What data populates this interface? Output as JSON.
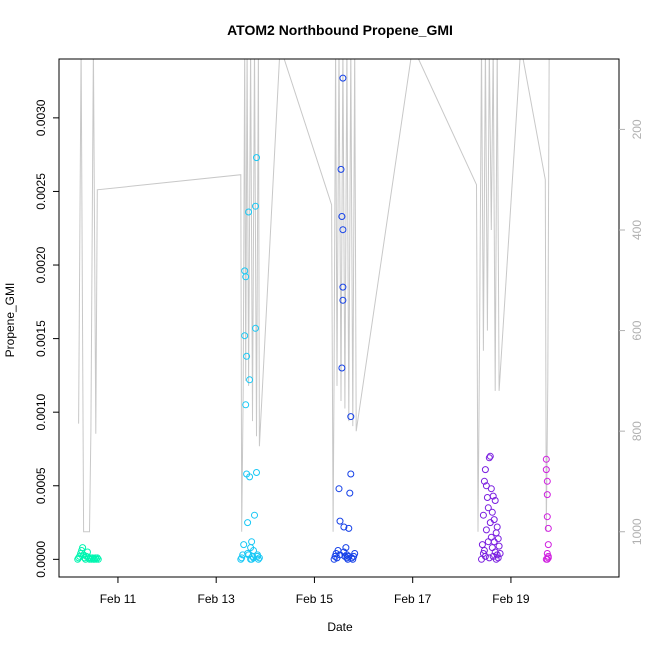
{
  "chart_data": {
    "type": "scatter",
    "title": "ATOM2 Northbound Propene_GMI",
    "xlabel": "Date",
    "ylabel": "Propene_GMI",
    "x_range_days": [
      9.8,
      21.2
    ],
    "x_ticks": [
      {
        "day": 11,
        "label": "Feb 11"
      },
      {
        "day": 13,
        "label": "Feb 13"
      },
      {
        "day": 15,
        "label": "Feb 15"
      },
      {
        "day": 17,
        "label": "Feb 17"
      },
      {
        "day": 19,
        "label": "Feb 19"
      }
    ],
    "ylim": [
      -0.00012,
      0.0034
    ],
    "y_ticks": [
      "0.0000",
      "0.0005",
      "0.0010",
      "0.0015",
      "0.0020",
      "0.0025",
      "0.0030"
    ],
    "y_tick_values": [
      0,
      0.0005,
      0.001,
      0.0015,
      0.002,
      0.0025,
      0.003
    ],
    "secondary_axis": {
      "reversed": true,
      "range": [
        60,
        1090
      ],
      "ticks": [
        "200",
        "400",
        "600",
        "800",
        "1000"
      ],
      "tick_values": [
        200,
        400,
        600,
        800,
        1000
      ],
      "series_color": "#c8c8c8",
      "path": [
        [
          10.2,
          785
        ],
        [
          10.25,
          35
        ],
        [
          10.3,
          1000
        ],
        [
          10.42,
          1000
        ],
        [
          10.45,
          800
        ],
        [
          10.5,
          35
        ],
        [
          10.55,
          805
        ],
        [
          10.58,
          320
        ],
        [
          13.5,
          290
        ],
        [
          13.52,
          1000
        ],
        [
          13.55,
          720
        ],
        [
          13.58,
          35
        ],
        [
          13.6,
          700
        ],
        [
          13.63,
          35
        ],
        [
          13.66,
          710
        ],
        [
          13.7,
          35
        ],
        [
          13.74,
          780
        ],
        [
          13.78,
          35
        ],
        [
          13.82,
          810
        ],
        [
          13.86,
          35
        ],
        [
          13.88,
          830
        ],
        [
          14.3,
          35
        ],
        [
          15.35,
          350
        ],
        [
          15.38,
          1000
        ],
        [
          15.4,
          680
        ],
        [
          15.43,
          35
        ],
        [
          15.46,
          710
        ],
        [
          15.5,
          35
        ],
        [
          15.54,
          740
        ],
        [
          15.58,
          35
        ],
        [
          15.62,
          755
        ],
        [
          15.66,
          35
        ],
        [
          15.7,
          780
        ],
        [
          15.74,
          35
        ],
        [
          15.78,
          790
        ],
        [
          15.82,
          35
        ],
        [
          15.85,
          800
        ],
        [
          17.0,
          35
        ],
        [
          18.3,
          310
        ],
        [
          18.33,
          1000
        ],
        [
          18.36,
          640
        ],
        [
          18.4,
          35
        ],
        [
          18.44,
          640
        ],
        [
          18.48,
          35
        ],
        [
          18.52,
          600
        ],
        [
          18.56,
          35
        ],
        [
          18.6,
          400
        ],
        [
          18.64,
          35
        ],
        [
          18.68,
          720
        ],
        [
          18.72,
          35
        ],
        [
          18.76,
          720
        ],
        [
          19.2,
          35
        ],
        [
          19.7,
          300
        ],
        [
          19.72,
          1000
        ],
        [
          19.75,
          700
        ],
        [
          19.78,
          35
        ]
      ]
    },
    "series": [
      {
        "color": "#00f5b0",
        "points": [
          [
            10.18,
            0.0
          ],
          [
            10.2,
            1e-05
          ],
          [
            10.22,
            2e-05
          ],
          [
            10.24,
            4e-05
          ],
          [
            10.26,
            6e-05
          ],
          [
            10.28,
            8e-05
          ],
          [
            10.3,
            3e-05
          ],
          [
            10.32,
            1e-05
          ],
          [
            10.34,
            0.0
          ],
          [
            10.36,
            2e-05
          ],
          [
            10.38,
            5e-05
          ],
          [
            10.4,
            1e-05
          ],
          [
            10.42,
            0.0
          ],
          [
            10.44,
            1e-05
          ],
          [
            10.46,
            0.0
          ],
          [
            10.48,
            1e-05
          ],
          [
            10.5,
            0.0
          ],
          [
            10.52,
            0.0
          ],
          [
            10.54,
            1e-05
          ],
          [
            10.56,
            0.0
          ],
          [
            10.58,
            1e-05
          ],
          [
            10.6,
            0.0
          ]
        ]
      },
      {
        "color": "#19c8f5",
        "points": [
          [
            13.5,
            0.0
          ],
          [
            13.52,
            1e-05
          ],
          [
            13.54,
            3e-05
          ],
          [
            13.56,
            0.0001
          ],
          [
            13.58,
            0.00152
          ],
          [
            13.58,
            0.00196
          ],
          [
            13.6,
            0.00105
          ],
          [
            13.6,
            0.00192
          ],
          [
            13.62,
            0.00138
          ],
          [
            13.62,
            0.00058
          ],
          [
            13.64,
            0.00025
          ],
          [
            13.64,
            4e-05
          ],
          [
            13.66,
            0.00236
          ],
          [
            13.68,
            0.00122
          ],
          [
            13.68,
            0.00056
          ],
          [
            13.7,
            0.0
          ],
          [
            13.72,
            0.00012
          ],
          [
            13.74,
            2e-05
          ],
          [
            13.76,
            6e-05
          ],
          [
            13.78,
            0.0003
          ],
          [
            13.8,
            0.00157
          ],
          [
            13.8,
            0.0024
          ],
          [
            13.82,
            0.00273
          ],
          [
            13.82,
            0.00059
          ],
          [
            13.84,
            2e-05
          ],
          [
            13.86,
            0.0
          ],
          [
            13.88,
            1e-05
          ],
          [
            13.7,
            8e-05
          ],
          [
            13.66,
            3e-05
          ],
          [
            13.72,
            0.0
          ],
          [
            13.76,
            1e-05
          ],
          [
            13.84,
            3e-05
          ]
        ]
      },
      {
        "color": "#1440e8",
        "points": [
          [
            15.4,
            0.0
          ],
          [
            15.42,
            2e-05
          ],
          [
            15.44,
            4e-05
          ],
          [
            15.46,
            1e-05
          ],
          [
            15.48,
            6e-05
          ],
          [
            15.5,
            0.00048
          ],
          [
            15.52,
            0.00026
          ],
          [
            15.54,
            0.00265
          ],
          [
            15.56,
            0.00233
          ],
          [
            15.56,
            0.0013
          ],
          [
            15.58,
            0.00327
          ],
          [
            15.58,
            0.00224
          ],
          [
            15.58,
            0.00185
          ],
          [
            15.58,
            0.00176
          ],
          [
            15.6,
            0.00022
          ],
          [
            15.62,
            2e-05
          ],
          [
            15.64,
            8e-05
          ],
          [
            15.66,
            3e-05
          ],
          [
            15.68,
            0.0
          ],
          [
            15.7,
            0.00021
          ],
          [
            15.72,
            0.00045
          ],
          [
            15.74,
            0.00097
          ],
          [
            15.74,
            0.00058
          ],
          [
            15.76,
            1e-05
          ],
          [
            15.78,
            0.0
          ],
          [
            15.8,
            2e-05
          ],
          [
            15.82,
            4e-05
          ],
          [
            15.52,
            3e-05
          ],
          [
            15.6,
            5e-05
          ],
          [
            15.66,
            1e-05
          ],
          [
            15.7,
            2e-05
          ]
        ]
      },
      {
        "color": "#7a1ee0",
        "points": [
          [
            18.4,
            0.0
          ],
          [
            18.42,
            0.0001
          ],
          [
            18.44,
            0.0003
          ],
          [
            18.46,
            0.00053
          ],
          [
            18.48,
            0.00061
          ],
          [
            18.5,
            0.0005
          ],
          [
            18.5,
            0.0002
          ],
          [
            18.52,
            0.00042
          ],
          [
            18.54,
            0.00035
          ],
          [
            18.56,
            0.00069
          ],
          [
            18.58,
            0.0007
          ],
          [
            18.58,
            0.00025
          ],
          [
            18.6,
            0.00048
          ],
          [
            18.6,
            0.00015
          ],
          [
            18.62,
            0.00032
          ],
          [
            18.62,
            8e-05
          ],
          [
            18.64,
            0.00043
          ],
          [
            18.64,
            2e-05
          ],
          [
            18.66,
            0.00027
          ],
          [
            18.66,
            0.00012
          ],
          [
            18.68,
            0.0004
          ],
          [
            18.68,
            5e-05
          ],
          [
            18.7,
            0.00018
          ],
          [
            18.7,
            0.0
          ],
          [
            18.72,
            0.00022
          ],
          [
            18.72,
            3e-05
          ],
          [
            18.74,
            0.00014
          ],
          [
            18.74,
            1e-05
          ],
          [
            18.76,
            9e-05
          ],
          [
            18.78,
            4e-05
          ],
          [
            18.46,
            6e-05
          ],
          [
            18.54,
            0.00012
          ],
          [
            18.48,
            2e-05
          ],
          [
            18.56,
            1e-05
          ],
          [
            18.44,
            4e-05
          ]
        ]
      },
      {
        "color": "#d020e0",
        "points": [
          [
            19.72,
            0.00068
          ],
          [
            19.72,
            0.00061
          ],
          [
            19.74,
            0.00053
          ],
          [
            19.74,
            0.00044
          ],
          [
            19.74,
            0.00029
          ],
          [
            19.76,
            0.00021
          ],
          [
            19.76,
            0.0001
          ],
          [
            19.74,
            4e-05
          ],
          [
            19.76,
            1e-05
          ],
          [
            19.72,
            0.0
          ],
          [
            19.74,
            0.0
          ],
          [
            19.76,
            2e-05
          ]
        ]
      }
    ]
  }
}
